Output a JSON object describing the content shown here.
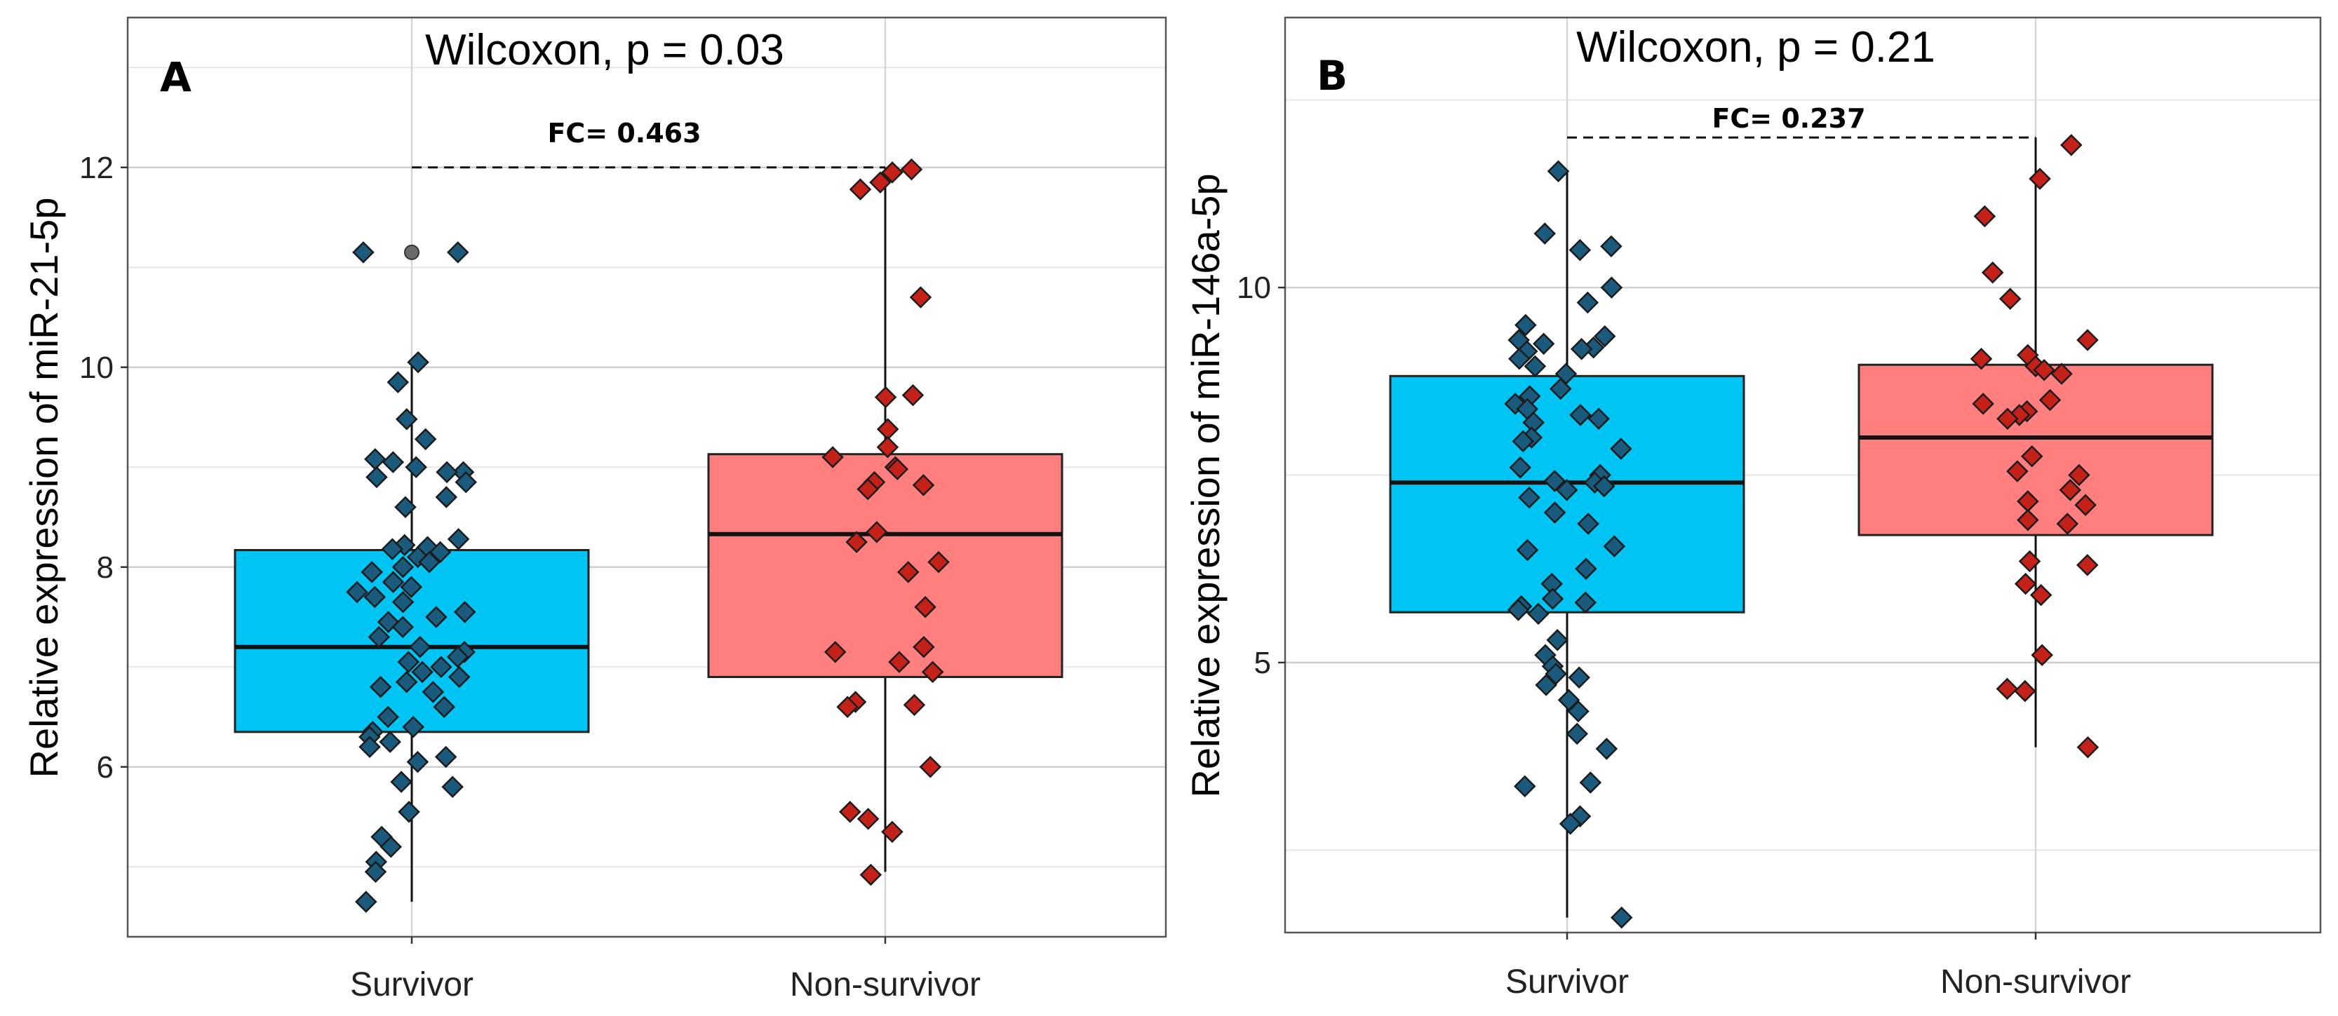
{
  "chart_data": [
    {
      "type": "box",
      "panel_label": "A",
      "title": "Wilcoxon, p = 0.03",
      "ylabel": "Relative expression of miR-21-5p",
      "xlabel": "",
      "ylim": [
        4.3,
        13.5
      ],
      "yticks": [
        6,
        8,
        10,
        12
      ],
      "categories": [
        "Survivor",
        "Non-survivor"
      ],
      "fold_change_label": "FC= 0.463",
      "fc_bracket_y": 12.0,
      "colors": {
        "Survivor": "#00c4f4",
        "Non-survivor": "#ff7f7f"
      },
      "point_colors": {
        "Survivor": "#1a5a7c",
        "Non-survivor": "#c42218"
      },
      "boxes": [
        {
          "category": "Survivor",
          "whisker_low": 4.65,
          "q1": 6.35,
          "median": 7.2,
          "q3": 8.17,
          "whisker_high": 10.05,
          "outliers": [
            11.15
          ]
        },
        {
          "category": "Non-survivor",
          "whisker_low": 4.95,
          "q1": 6.9,
          "median": 8.33,
          "q3": 9.13,
          "whisker_high": 12.0,
          "outliers": []
        }
      ],
      "points": [
        {
          "category": "Survivor",
          "values": [
            11.15,
            11.15,
            10.05,
            9.85,
            9.48,
            9.28,
            9.08,
            9.05,
            9.0,
            8.95,
            8.95,
            8.9,
            8.85,
            8.7,
            8.6,
            8.28,
            8.22,
            8.2,
            8.18,
            8.15,
            8.1,
            8.05,
            8.0,
            7.95,
            7.85,
            7.8,
            7.75,
            7.7,
            7.65,
            7.55,
            7.5,
            7.45,
            7.4,
            7.3,
            7.2,
            7.15,
            7.1,
            7.05,
            7.0,
            6.95,
            6.9,
            6.85,
            6.8,
            6.75,
            6.6,
            6.5,
            6.4,
            6.35,
            6.3,
            6.25,
            6.2,
            6.1,
            6.05,
            5.85,
            5.8,
            5.55,
            5.3,
            5.2,
            5.05,
            4.95,
            4.65
          ]
        },
        {
          "category": "Non-survivor",
          "values": [
            11.98,
            11.95,
            11.85,
            11.78,
            10.7,
            9.72,
            9.7,
            9.38,
            9.2,
            9.1,
            9.0,
            8.98,
            8.85,
            8.82,
            8.78,
            8.35,
            8.25,
            8.05,
            7.95,
            7.6,
            7.2,
            7.15,
            7.05,
            6.95,
            6.65,
            6.62,
            6.6,
            6.0,
            5.55,
            5.48,
            5.35,
            4.92
          ]
        }
      ]
    },
    {
      "type": "box",
      "panel_label": "B",
      "title": "Wilcoxon, p = 0.21",
      "ylabel": "Relative expression of miR-146a-5p",
      "xlabel": "",
      "ylim": [
        1.4,
        13.6
      ],
      "yticks": [
        5,
        10
      ],
      "categories": [
        "Survivor",
        "Non-survivor"
      ],
      "fold_change_label": "FC= 0.237",
      "fc_bracket_y": 12.0,
      "colors": {
        "Survivor": "#00c4f4",
        "Non-survivor": "#ff7f7f"
      },
      "point_colors": {
        "Survivor": "#1a5a7c",
        "Non-survivor": "#c42218"
      },
      "boxes": [
        {
          "category": "Survivor",
          "whisker_low": 1.6,
          "q1": 5.67,
          "median": 7.4,
          "q3": 8.82,
          "whisker_high": 11.55,
          "outliers": []
        },
        {
          "category": "Non-survivor",
          "whisker_low": 3.87,
          "q1": 6.7,
          "median": 8.0,
          "q3": 8.97,
          "whisker_high": 12.0,
          "outliers": []
        }
      ],
      "points": [
        {
          "category": "Survivor",
          "values": [
            11.55,
            10.72,
            10.55,
            10.5,
            10.0,
            9.8,
            9.5,
            9.35,
            9.3,
            9.25,
            9.2,
            9.18,
            9.15,
            9.05,
            8.95,
            8.85,
            8.65,
            8.55,
            8.45,
            8.38,
            8.3,
            8.25,
            8.2,
            8.0,
            7.95,
            7.85,
            7.6,
            7.5,
            7.42,
            7.4,
            7.35,
            7.3,
            7.2,
            7.0,
            6.85,
            6.55,
            6.5,
            6.25,
            6.05,
            5.85,
            5.8,
            5.75,
            5.7,
            5.65,
            5.3,
            5.1,
            4.95,
            4.85,
            4.8,
            4.7,
            4.5,
            4.35,
            4.05,
            3.85,
            3.4,
            3.35,
            2.95,
            2.85,
            1.6
          ]
        },
        {
          "category": "Non-survivor",
          "values": [
            11.9,
            11.45,
            10.95,
            10.2,
            9.85,
            9.3,
            9.1,
            9.05,
            8.95,
            8.9,
            8.85,
            8.5,
            8.45,
            8.35,
            8.3,
            8.25,
            7.75,
            7.55,
            7.5,
            7.3,
            7.15,
            7.1,
            6.9,
            6.85,
            6.35,
            6.3,
            6.05,
            5.9,
            5.1,
            4.65,
            4.62,
            3.87
          ]
        }
      ]
    }
  ]
}
